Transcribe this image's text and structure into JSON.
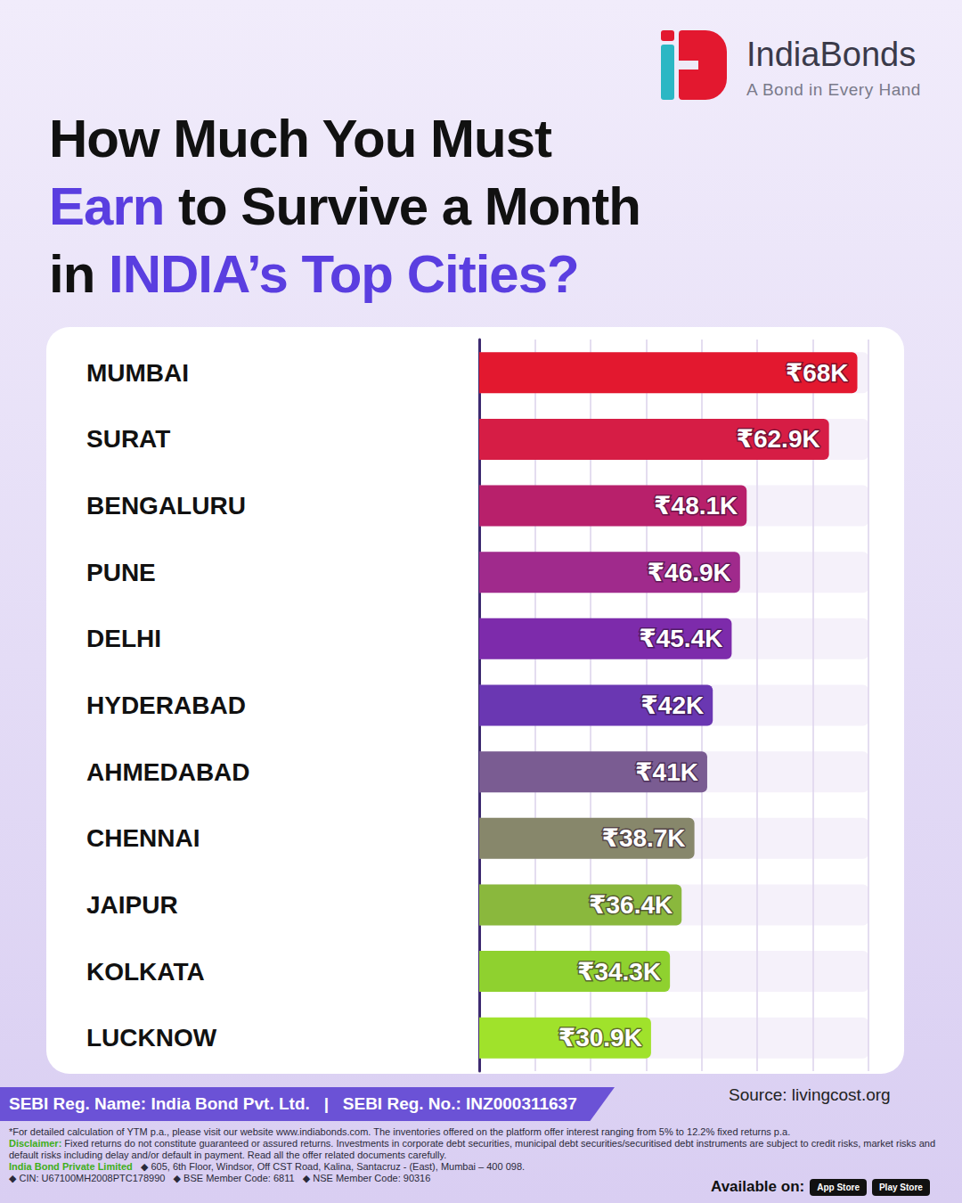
{
  "header": {
    "brand": "IndiaBonds",
    "tagline": "A Bond in Every Hand",
    "title_lines": [
      [
        {
          "text": "How Much You Must",
          "accent": false
        }
      ],
      [
        {
          "text": "Earn",
          "accent": true
        },
        {
          "text": " to Survive a Month",
          "accent": false
        }
      ],
      [
        {
          "text": "in ",
          "accent": false
        },
        {
          "text": "INDIA’s Top Cities?",
          "accent": true
        }
      ]
    ]
  },
  "chart_data": {
    "type": "bar",
    "orientation": "horizontal",
    "categories": [
      "MUMBAI",
      "SURAT",
      "BENGALURU",
      "PUNE",
      "DELHI",
      "HYDERABAD",
      "AHMEDABAD",
      "CHENNAI",
      "JAIPUR",
      "KOLKATA",
      "LUCKNOW"
    ],
    "values": [
      68,
      62.9,
      48.1,
      46.9,
      45.4,
      42,
      41,
      38.7,
      36.4,
      34.3,
      30.9
    ],
    "value_labels": [
      "₹68K",
      "₹62.9K",
      "₹48.1K",
      "₹46.9K",
      "₹45.4K",
      "₹42K",
      "₹41K",
      "₹38.7K",
      "₹36.4K",
      "₹34.3K",
      "₹30.9K"
    ],
    "colors": [
      "#e3182f",
      "#d61d45",
      "#b8206b",
      "#a02a8c",
      "#7d2bab",
      "#6a37b2",
      "#7a5c92",
      "#87876b",
      "#8ab83d",
      "#8fd12f",
      "#a0e22b"
    ],
    "data_labels": true,
    "xlim": [
      0,
      70
    ],
    "xticks": [
      0,
      10,
      20,
      30,
      40,
      50,
      60,
      70
    ],
    "grid": true,
    "tick_labels": "y"
  },
  "footer": {
    "registration": [
      "SEBI Reg. Name: India Bond Pvt. Ltd.",
      "|",
      "SEBI Reg. No.: INZ000311637"
    ],
    "source": "Source: livingcost.org",
    "notes": [
      [
        {
          "text": "*For detailed calculation of YTM p.a., please visit our website www.indiabonds.com. The inventories offered on the platform offer interest ranging from 5% to 12.2% fixed returns p.a.",
          "emphasis": false
        }
      ],
      [
        {
          "text": "Disclaimer:",
          "emphasis": true
        },
        {
          "text": " Fixed returns do not constitute guaranteed or assured returns. Investments in corporate debt securities, municipal debt securities/securitised debt instruments are subject to credit risks, market risks and default risks including delay and/or default in payment. Read all the offer related documents carefully.",
          "emphasis": false
        }
      ],
      [
        {
          "text": "India Bond Private Limited",
          "emphasis": true
        },
        {
          "text": "   ◆ 605, 6th Floor, Windsor, Off CST Road, Kalina, Santacruz - (East), Mumbai – 400 098.",
          "emphasis": false
        }
      ],
      [
        {
          "text": "◆ CIN: U67100MH2008PTC178990   ◆ BSE Member Code: 6811   ◆ NSE Member Code: 90316",
          "emphasis": false
        }
      ]
    ],
    "availability": {
      "label": "Available on:",
      "stores": [
        "App Store",
        "Play Store"
      ]
    }
  }
}
